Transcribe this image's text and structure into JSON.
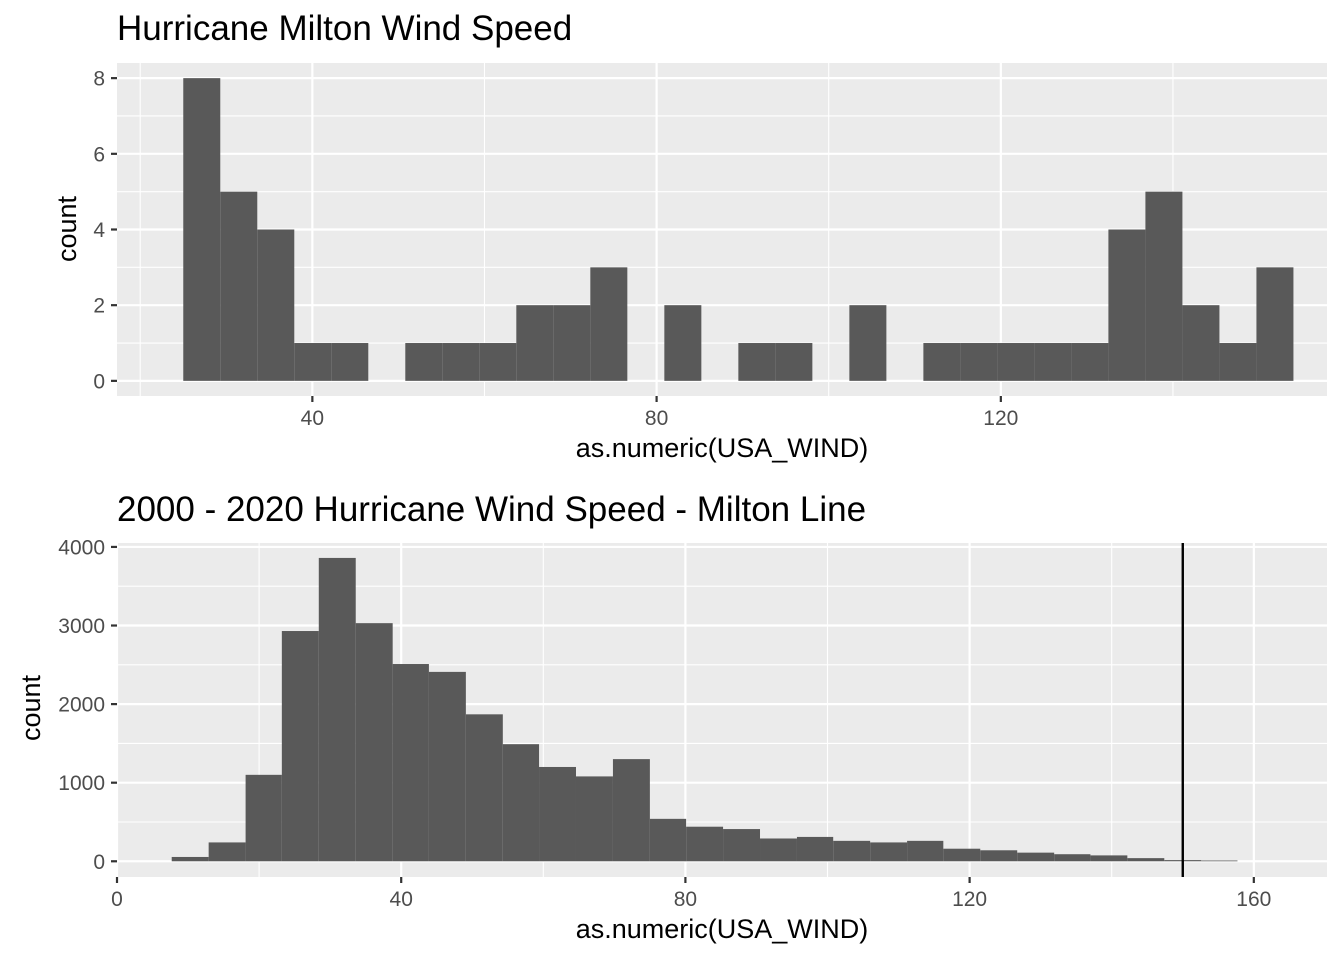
{
  "chart_data": [
    {
      "type": "bar",
      "title": "Hurricane Milton Wind Speed",
      "xlabel": "as.numeric(USA_WIND)",
      "ylabel": "count",
      "xlim": [
        17.3,
        157.9
      ],
      "ylim": [
        -0.4,
        8.4
      ],
      "x_ticks": [
        40,
        80,
        120
      ],
      "y_ticks": [
        0,
        2,
        4,
        6,
        8
      ],
      "grid": true,
      "bin_width": 4.3,
      "bins": [
        {
          "x0": 25.0,
          "x1": 29.3,
          "count": 8
        },
        {
          "x0": 29.3,
          "x1": 33.6,
          "count": 5
        },
        {
          "x0": 33.6,
          "x1": 37.9,
          "count": 4
        },
        {
          "x0": 37.9,
          "x1": 42.2,
          "count": 1
        },
        {
          "x0": 42.2,
          "x1": 46.5,
          "count": 1
        },
        {
          "x0": 46.5,
          "x1": 50.8,
          "count": 0
        },
        {
          "x0": 50.8,
          "x1": 55.1,
          "count": 1
        },
        {
          "x0": 55.1,
          "x1": 59.4,
          "count": 1
        },
        {
          "x0": 59.4,
          "x1": 63.7,
          "count": 1
        },
        {
          "x0": 63.7,
          "x1": 68.0,
          "count": 2
        },
        {
          "x0": 68.0,
          "x1": 72.3,
          "count": 2
        },
        {
          "x0": 72.3,
          "x1": 76.6,
          "count": 3
        },
        {
          "x0": 76.6,
          "x1": 80.9,
          "count": 0
        },
        {
          "x0": 80.9,
          "x1": 85.2,
          "count": 2
        },
        {
          "x0": 85.2,
          "x1": 89.5,
          "count": 0
        },
        {
          "x0": 89.5,
          "x1": 93.8,
          "count": 1
        },
        {
          "x0": 93.8,
          "x1": 98.1,
          "count": 1
        },
        {
          "x0": 98.1,
          "x1": 102.4,
          "count": 0
        },
        {
          "x0": 102.4,
          "x1": 106.7,
          "count": 2
        },
        {
          "x0": 106.7,
          "x1": 111.0,
          "count": 0
        },
        {
          "x0": 111.0,
          "x1": 115.3,
          "count": 1
        },
        {
          "x0": 115.3,
          "x1": 119.6,
          "count": 1
        },
        {
          "x0": 119.6,
          "x1": 123.9,
          "count": 1
        },
        {
          "x0": 123.9,
          "x1": 128.2,
          "count": 1
        },
        {
          "x0": 128.2,
          "x1": 132.5,
          "count": 1
        },
        {
          "x0": 132.5,
          "x1": 136.8,
          "count": 4
        },
        {
          "x0": 136.8,
          "x1": 141.1,
          "count": 5
        },
        {
          "x0": 141.1,
          "x1": 145.4,
          "count": 2
        },
        {
          "x0": 145.4,
          "x1": 149.7,
          "count": 1
        },
        {
          "x0": 149.7,
          "x1": 154.0,
          "count": 3
        }
      ]
    },
    {
      "type": "bar",
      "title": "2000 - 2020 Hurricane Wind Speed - Milton Line",
      "xlabel": "as.numeric(USA_WIND)",
      "ylabel": "count",
      "xlim": [
        0,
        170.3
      ],
      "ylim": [
        -200,
        4050
      ],
      "x_ticks": [
        0,
        40,
        80,
        120,
        160
      ],
      "y_ticks": [
        0,
        1000,
        2000,
        3000,
        4000
      ],
      "grid": true,
      "bin_width": 5.17,
      "bins": [
        {
          "x0": 7.7,
          "x1": 12.9,
          "count": 55
        },
        {
          "x0": 12.9,
          "x1": 18.1,
          "count": 240
        },
        {
          "x0": 18.1,
          "x1": 23.2,
          "count": 1100
        },
        {
          "x0": 23.2,
          "x1": 28.4,
          "count": 2930
        },
        {
          "x0": 28.4,
          "x1": 33.6,
          "count": 3860
        },
        {
          "x0": 33.6,
          "x1": 38.8,
          "count": 3030
        },
        {
          "x0": 38.8,
          "x1": 43.9,
          "count": 2510
        },
        {
          "x0": 43.9,
          "x1": 49.1,
          "count": 2410
        },
        {
          "x0": 49.1,
          "x1": 54.3,
          "count": 1870
        },
        {
          "x0": 54.3,
          "x1": 59.4,
          "count": 1490
        },
        {
          "x0": 59.4,
          "x1": 64.6,
          "count": 1200
        },
        {
          "x0": 64.6,
          "x1": 69.8,
          "count": 1080
        },
        {
          "x0": 69.8,
          "x1": 75.0,
          "count": 1300
        },
        {
          "x0": 75.0,
          "x1": 80.1,
          "count": 540
        },
        {
          "x0": 80.1,
          "x1": 85.3,
          "count": 440
        },
        {
          "x0": 85.3,
          "x1": 90.5,
          "count": 410
        },
        {
          "x0": 90.5,
          "x1": 95.7,
          "count": 290
        },
        {
          "x0": 95.7,
          "x1": 100.8,
          "count": 310
        },
        {
          "x0": 100.8,
          "x1": 106.0,
          "count": 260
        },
        {
          "x0": 106.0,
          "x1": 111.2,
          "count": 240
        },
        {
          "x0": 111.2,
          "x1": 116.3,
          "count": 260
        },
        {
          "x0": 116.3,
          "x1": 121.5,
          "count": 160
        },
        {
          "x0": 121.5,
          "x1": 126.7,
          "count": 140
        },
        {
          "x0": 126.7,
          "x1": 131.9,
          "count": 110
        },
        {
          "x0": 131.9,
          "x1": 137.0,
          "count": 90
        },
        {
          "x0": 137.0,
          "x1": 142.2,
          "count": 75
        },
        {
          "x0": 142.2,
          "x1": 147.4,
          "count": 40
        },
        {
          "x0": 147.4,
          "x1": 152.6,
          "count": 15
        },
        {
          "x0": 152.6,
          "x1": 157.7,
          "count": 10
        }
      ],
      "reference_line": {
        "x": 150,
        "color": "#000000"
      }
    }
  ]
}
